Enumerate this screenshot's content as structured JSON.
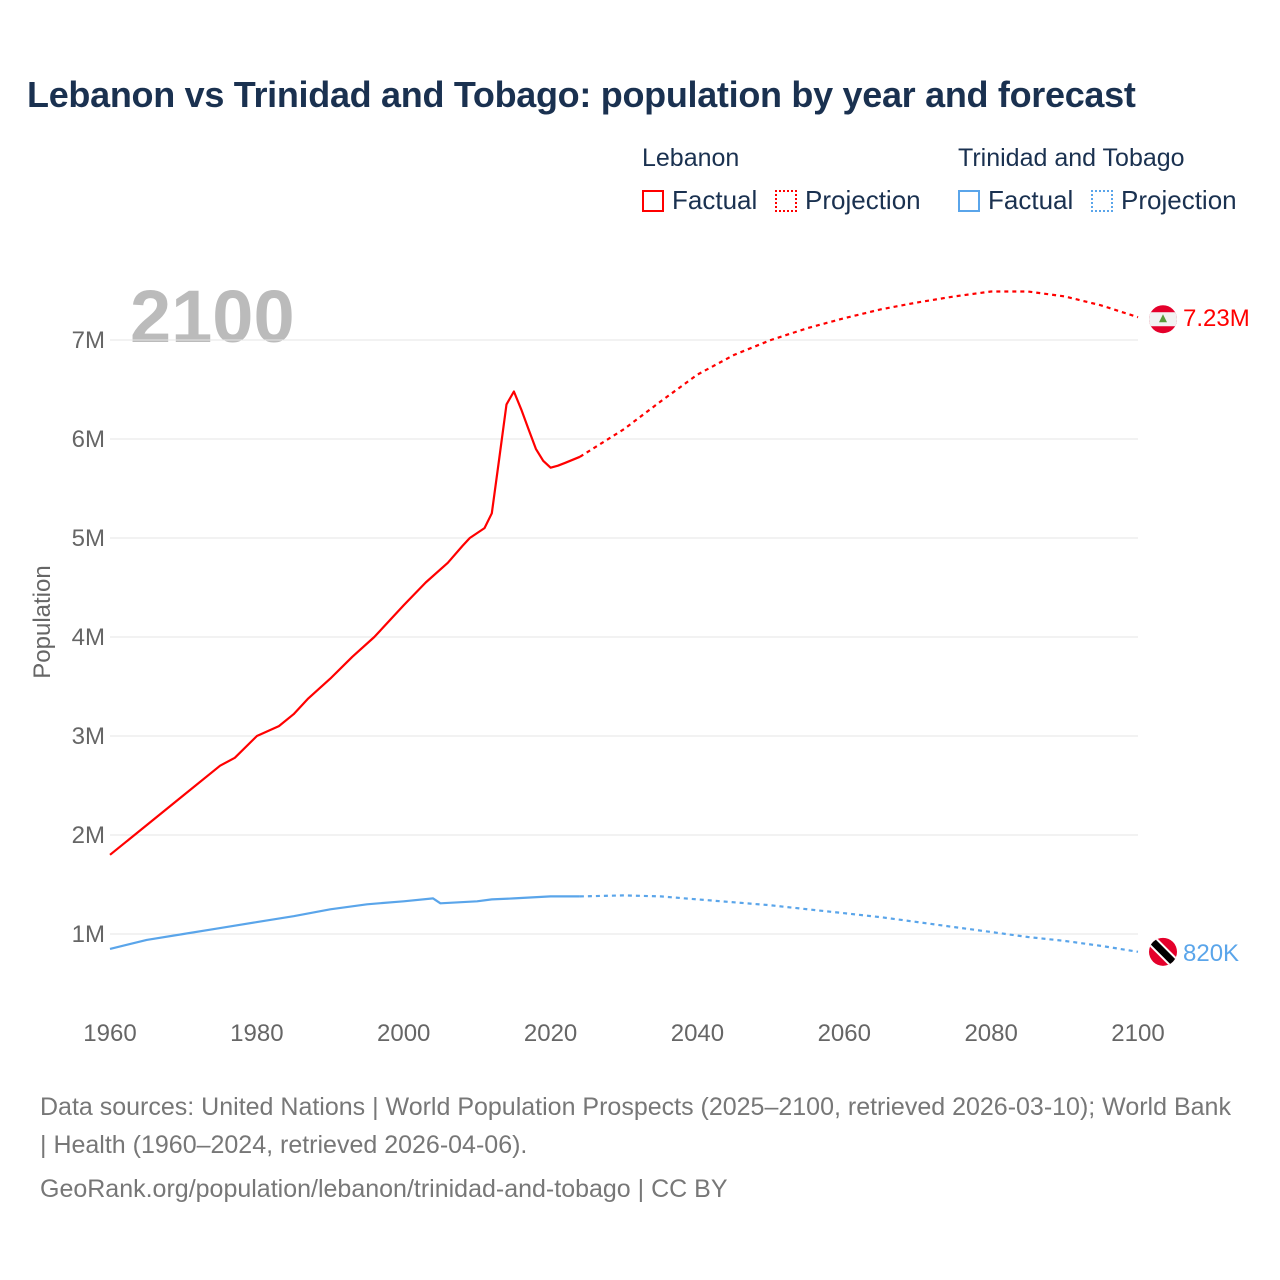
{
  "title": "Lebanon vs Trinidad and Tobago: population by year and forecast",
  "legend": {
    "groups": [
      {
        "name": "Lebanon",
        "factual": "Factual",
        "projection": "Projection",
        "color": "#ff0000"
      },
      {
        "name": "Trinidad and Tobago",
        "factual": "Factual",
        "projection": "Projection",
        "color": "#5aa5ea"
      }
    ]
  },
  "year_overlay": "2100",
  "chart_data": {
    "type": "line",
    "title": "Lebanon vs Trinidad and Tobago: population by year and forecast",
    "xlabel": "",
    "ylabel": "Population",
    "xlim": [
      1960,
      2100
    ],
    "ylim": [
      0,
      7.5
    ],
    "x_ticks": [
      "1960",
      "1980",
      "2000",
      "2020",
      "2040",
      "2060",
      "2080",
      "2100"
    ],
    "y_ticks": [
      "1M",
      "2M",
      "3M",
      "4M",
      "5M",
      "6M",
      "7M"
    ],
    "y_unit": "millions",
    "grid": true,
    "legend_position": "top-right",
    "series": [
      {
        "name": "Lebanon",
        "color": "#ff0000",
        "end_label": "7.23M",
        "factual": [
          [
            1960,
            1.8
          ],
          [
            1965,
            2.1
          ],
          [
            1970,
            2.4
          ],
          [
            1975,
            2.7
          ],
          [
            1977,
            2.78
          ],
          [
            1980,
            3.0
          ],
          [
            1983,
            3.1
          ],
          [
            1985,
            3.22
          ],
          [
            1987,
            3.38
          ],
          [
            1990,
            3.58
          ],
          [
            1993,
            3.8
          ],
          [
            1996,
            4.0
          ],
          [
            2000,
            4.32
          ],
          [
            2003,
            4.55
          ],
          [
            2006,
            4.75
          ],
          [
            2008,
            4.92
          ],
          [
            2009,
            5.0
          ],
          [
            2011,
            5.1
          ],
          [
            2012,
            5.25
          ],
          [
            2013,
            5.8
          ],
          [
            2014,
            6.35
          ],
          [
            2015,
            6.48
          ],
          [
            2016,
            6.3
          ],
          [
            2017,
            6.1
          ],
          [
            2018,
            5.9
          ],
          [
            2019,
            5.78
          ],
          [
            2020,
            5.71
          ],
          [
            2021,
            5.73
          ],
          [
            2022,
            5.76
          ],
          [
            2024,
            5.82
          ]
        ],
        "projection": [
          [
            2024,
            5.82
          ],
          [
            2030,
            6.1
          ],
          [
            2035,
            6.38
          ],
          [
            2040,
            6.65
          ],
          [
            2045,
            6.85
          ],
          [
            2050,
            7.0
          ],
          [
            2055,
            7.12
          ],
          [
            2060,
            7.22
          ],
          [
            2065,
            7.31
          ],
          [
            2070,
            7.38
          ],
          [
            2075,
            7.44
          ],
          [
            2080,
            7.49
          ],
          [
            2085,
            7.49
          ],
          [
            2090,
            7.44
          ],
          [
            2095,
            7.35
          ],
          [
            2100,
            7.23
          ]
        ]
      },
      {
        "name": "Trinidad and Tobago",
        "color": "#5aa5ea",
        "end_label": "820K",
        "factual": [
          [
            1960,
            0.85
          ],
          [
            1965,
            0.94
          ],
          [
            1970,
            1.0
          ],
          [
            1975,
            1.06
          ],
          [
            1980,
            1.12
          ],
          [
            1985,
            1.18
          ],
          [
            1990,
            1.25
          ],
          [
            1995,
            1.3
          ],
          [
            2000,
            1.33
          ],
          [
            2004,
            1.36
          ],
          [
            2005,
            1.31
          ],
          [
            2010,
            1.33
          ],
          [
            2012,
            1.35
          ],
          [
            2015,
            1.36
          ],
          [
            2020,
            1.38
          ],
          [
            2024,
            1.38
          ]
        ],
        "projection": [
          [
            2024,
            1.38
          ],
          [
            2030,
            1.39
          ],
          [
            2035,
            1.38
          ],
          [
            2040,
            1.35
          ],
          [
            2045,
            1.32
          ],
          [
            2050,
            1.29
          ],
          [
            2055,
            1.25
          ],
          [
            2060,
            1.21
          ],
          [
            2065,
            1.17
          ],
          [
            2070,
            1.12
          ],
          [
            2075,
            1.07
          ],
          [
            2080,
            1.02
          ],
          [
            2085,
            0.97
          ],
          [
            2090,
            0.93
          ],
          [
            2095,
            0.88
          ],
          [
            2100,
            0.82
          ]
        ]
      }
    ]
  },
  "source": {
    "line1": "Data sources: United Nations | World Population Prospects (2025–2100, retrieved 2026-03-10); World Bank | Health (1960–2024, retrieved 2026-04-06).",
    "line2": "GeoRank.org/population/lebanon/trinidad-and-tobago | CC BY"
  }
}
